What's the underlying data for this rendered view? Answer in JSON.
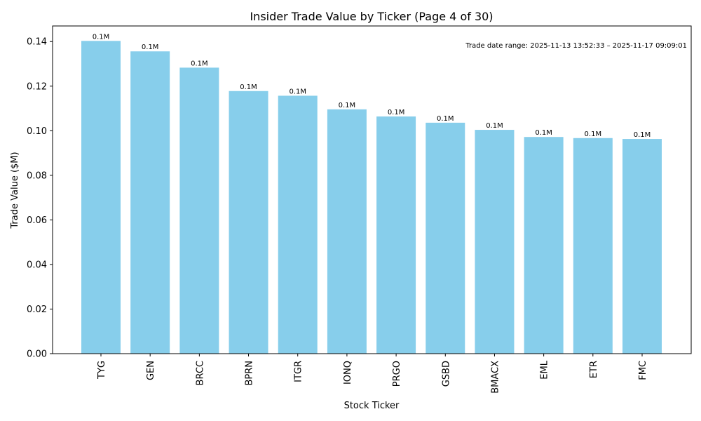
{
  "chart_data": {
    "type": "bar",
    "title": "Insider Trade Value by Ticker (Page 4 of 30)",
    "xlabel": "Stock Ticker",
    "ylabel": "Trade Value ($M)",
    "categories": [
      "TYG",
      "GEN",
      "BRCC",
      "BPRN",
      "ITGR",
      "IONQ",
      "PRGO",
      "GSBD",
      "BMACX",
      "EML",
      "ETR",
      "FMC"
    ],
    "values": [
      0.1403,
      0.1356,
      0.1283,
      0.1178,
      0.1157,
      0.1096,
      0.1064,
      0.1036,
      0.1004,
      0.0972,
      0.0967,
      0.0963
    ],
    "data_labels": [
      "0.1M",
      "0.1M",
      "0.1M",
      "0.1M",
      "0.1M",
      "0.1M",
      "0.1M",
      "0.1M",
      "0.1M",
      "0.1M",
      "0.1M",
      "0.1M"
    ],
    "ylim": [
      0,
      0.147
    ],
    "yticks": [
      "0.00",
      "0.02",
      "0.04",
      "0.06",
      "0.08",
      "0.10",
      "0.12",
      "0.14"
    ],
    "annotation": "Trade date range: 2025-11-13 13:52:33 – 2025-11-17 09:09:01",
    "grid": false,
    "bar_color": "#87ceeb"
  }
}
